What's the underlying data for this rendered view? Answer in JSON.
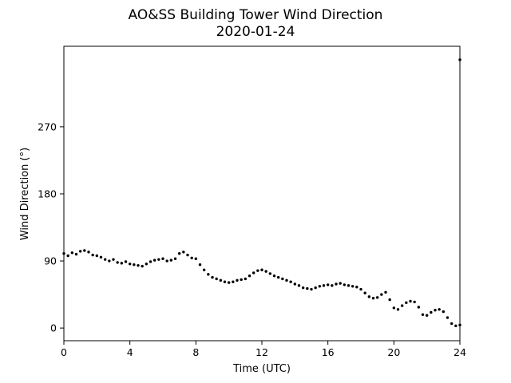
{
  "chart_data": {
    "type": "scatter",
    "title": "AO&SS Building Tower Wind Direction",
    "subtitle": "2020-01-24",
    "xlabel": "Time (UTC)",
    "ylabel": "Wind Direction (°)",
    "xlim": [
      0,
      24
    ],
    "ylim": [
      -17,
      378
    ],
    "xticks": [
      0,
      4,
      8,
      12,
      16,
      20,
      24
    ],
    "yticks": [
      0,
      90,
      180,
      270
    ],
    "grid": false,
    "marker_color": "#000000",
    "series": [
      {
        "x": [
          0.0,
          0.25,
          0.5,
          0.75,
          1.0,
          1.25,
          1.5,
          1.75,
          2.0,
          2.25,
          2.5,
          2.75,
          3.0,
          3.25,
          3.5,
          3.75,
          4.0,
          4.25,
          4.5,
          4.75,
          5.0,
          5.25,
          5.5,
          5.75,
          6.0,
          6.25,
          6.5,
          6.75,
          7.0,
          7.25,
          7.5,
          7.75,
          8.0,
          8.25,
          8.5,
          8.75,
          9.0,
          9.25,
          9.5,
          9.75,
          10.0,
          10.25,
          10.5,
          10.75,
          11.0,
          11.25,
          11.5,
          11.75,
          12.0,
          12.25,
          12.5,
          12.75,
          13.0,
          13.25,
          13.5,
          13.75,
          14.0,
          14.25,
          14.5,
          14.75,
          15.0,
          15.25,
          15.5,
          15.75,
          16.0,
          16.25,
          16.5,
          16.75,
          17.0,
          17.25,
          17.5,
          17.75,
          18.0,
          18.25,
          18.5,
          18.75,
          19.0,
          19.25,
          19.5,
          19.75,
          20.0,
          20.25,
          20.5,
          20.75,
          21.0,
          21.25,
          21.5,
          21.75,
          22.0,
          22.25,
          22.5,
          22.75,
          23.0,
          23.25,
          23.5,
          23.75,
          24.0,
          24.0
        ],
        "y": [
          100,
          97,
          101,
          99,
          103,
          104,
          102,
          98,
          97,
          95,
          92,
          90,
          92,
          88,
          87,
          89,
          86,
          85,
          84,
          83,
          86,
          89,
          91,
          92,
          93,
          90,
          91,
          93,
          100,
          102,
          98,
          94,
          93,
          85,
          78,
          72,
          68,
          66,
          64,
          62,
          61,
          62,
          64,
          65,
          66,
          70,
          74,
          77,
          78,
          76,
          73,
          70,
          68,
          66,
          64,
          62,
          59,
          57,
          54,
          53,
          52,
          54,
          56,
          57,
          58,
          57,
          59,
          60,
          58,
          57,
          56,
          55,
          52,
          47,
          42,
          40,
          41,
          45,
          48,
          38,
          27,
          25,
          30,
          34,
          36,
          35,
          28,
          18,
          17,
          21,
          24,
          25,
          22,
          14,
          6,
          3,
          4,
          360
        ]
      }
    ]
  }
}
